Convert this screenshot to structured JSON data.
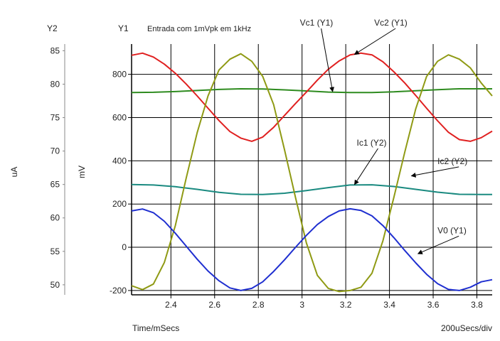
{
  "chart_data": {
    "type": "line",
    "title": "Entrada com 1mVpk em 1kHz",
    "xlabel": "Time/mSecs",
    "x_division_note": "200uSecs/div",
    "xlim": [
      2.22,
      3.87
    ],
    "x_ticks": [
      2.4,
      2.6,
      2.8,
      3,
      3.2,
      3.4,
      3.6,
      3.8
    ],
    "x_tick_labels": [
      "2.4",
      "2.6",
      "2.8",
      "3",
      "3.2",
      "3.4",
      "3.6",
      "3.8"
    ],
    "y1": {
      "name": "Y1",
      "unit": "mV",
      "ylim": [
        -220,
        940
      ],
      "ticks": [
        -200,
        0,
        200,
        400,
        600,
        800
      ],
      "tick_labels": [
        "-200",
        "0",
        "200",
        "400",
        "600",
        "800"
      ]
    },
    "y2": {
      "name": "Y2",
      "unit": "uA",
      "ylim": [
        48.5,
        86
      ],
      "ticks": [
        50,
        55,
        60,
        65,
        70,
        75,
        80,
        85
      ],
      "tick_labels": [
        "50",
        "55",
        "60",
        "65",
        "70",
        "75",
        "80",
        "85"
      ]
    },
    "grid": true,
    "series": [
      {
        "name": "Vc1 (Y1)",
        "axis": "y1",
        "color": "#2e8b1f",
        "x": [
          2.22,
          2.32,
          2.42,
          2.52,
          2.62,
          2.72,
          2.82,
          2.92,
          3.02,
          3.12,
          3.22,
          3.32,
          3.42,
          3.52,
          3.62,
          3.72,
          3.82,
          3.87
        ],
        "y": [
          716,
          717,
          720,
          725,
          730,
          733,
          732,
          728,
          723,
          718,
          716,
          716,
          719,
          724,
          729,
          733,
          733,
          733
        ]
      },
      {
        "name": "Vc2 (Y1)",
        "axis": "y1",
        "color": "#e02020",
        "x": [
          2.22,
          2.27,
          2.32,
          2.37,
          2.42,
          2.47,
          2.52,
          2.57,
          2.62,
          2.67,
          2.72,
          2.77,
          2.82,
          2.87,
          2.92,
          2.97,
          3.02,
          3.07,
          3.12,
          3.17,
          3.22,
          3.27,
          3.32,
          3.37,
          3.42,
          3.47,
          3.52,
          3.57,
          3.62,
          3.67,
          3.72,
          3.77,
          3.82,
          3.87
        ],
        "y": [
          888,
          898,
          880,
          847,
          805,
          755,
          700,
          643,
          586,
          535,
          505,
          490,
          510,
          555,
          610,
          665,
          718,
          773,
          823,
          862,
          890,
          898,
          890,
          858,
          812,
          760,
          702,
          643,
          585,
          532,
          498,
          490,
          507,
          537
        ]
      },
      {
        "name": "Ic1 (Y2)",
        "axis": "y2",
        "color": "#1a8a80",
        "x": [
          2.22,
          2.32,
          2.42,
          2.52,
          2.62,
          2.72,
          2.82,
          2.92,
          3.02,
          3.12,
          3.22,
          3.32,
          3.42,
          3.52,
          3.62,
          3.72,
          3.82,
          3.87
        ],
        "y": [
          290,
          288,
          280,
          268,
          254,
          245,
          244,
          250,
          262,
          276,
          288,
          289,
          281,
          268,
          255,
          245,
          244,
          244
        ]
      },
      {
        "name": "Ic2 (Y2)",
        "axis": "y2",
        "color": "#8f9a14",
        "x": [
          2.22,
          2.27,
          2.32,
          2.37,
          2.42,
          2.47,
          2.52,
          2.57,
          2.62,
          2.67,
          2.72,
          2.77,
          2.82,
          2.87,
          2.92,
          2.97,
          3.02,
          3.07,
          3.12,
          3.17,
          3.22,
          3.27,
          3.32,
          3.37,
          3.42,
          3.47,
          3.52,
          3.57,
          3.62,
          3.67,
          3.72,
          3.77,
          3.82,
          3.87
        ],
        "y": [
          -178,
          -196,
          -170,
          -70,
          100,
          320,
          530,
          700,
          820,
          870,
          895,
          860,
          790,
          660,
          450,
          230,
          20,
          -130,
          -190,
          -205,
          -200,
          -185,
          -120,
          30,
          230,
          440,
          640,
          790,
          860,
          890,
          870,
          830,
          760,
          700
        ]
      },
      {
        "name": "V0 (Y1)",
        "axis": "y1",
        "color": "#1f2fd0",
        "x": [
          2.22,
          2.27,
          2.32,
          2.37,
          2.42,
          2.47,
          2.52,
          2.57,
          2.62,
          2.67,
          2.72,
          2.77,
          2.82,
          2.87,
          2.92,
          2.97,
          3.02,
          3.07,
          3.12,
          3.17,
          3.22,
          3.27,
          3.32,
          3.37,
          3.42,
          3.47,
          3.52,
          3.57,
          3.62,
          3.67,
          3.72,
          3.77,
          3.82,
          3.87
        ],
        "y": [
          168,
          177,
          160,
          120,
          65,
          5,
          -55,
          -110,
          -155,
          -188,
          -200,
          -190,
          -160,
          -112,
          -58,
          0,
          55,
          105,
          142,
          168,
          178,
          170,
          145,
          100,
          45,
          -15,
          -72,
          -125,
          -168,
          -195,
          -200,
          -185,
          -160,
          -150
        ]
      }
    ],
    "annotations": [
      {
        "text": "Vc1 (Y1)",
        "series": 0,
        "label_x": 2.99,
        "label_y": 1025,
        "point_x": 3.14,
        "point_y": 720
      },
      {
        "text": "Vc2 (Y1)",
        "series": 1,
        "label_x": 3.33,
        "label_y": 1025,
        "point_x": 3.24,
        "point_y": 892
      },
      {
        "text": "Ic1 (Y2)",
        "series": 2,
        "label_x": 3.25,
        "label_y": 470,
        "point_x": 3.24,
        "point_y": 290
      },
      {
        "text": "Ic2 (Y2)",
        "series": 3,
        "label_x": 3.62,
        "label_y": 385,
        "point_x": 3.5,
        "point_y": 330
      },
      {
        "text": "V0 (Y1)",
        "series": 4,
        "label_x": 3.62,
        "label_y": 65,
        "point_x": 3.53,
        "point_y": -30
      }
    ]
  }
}
